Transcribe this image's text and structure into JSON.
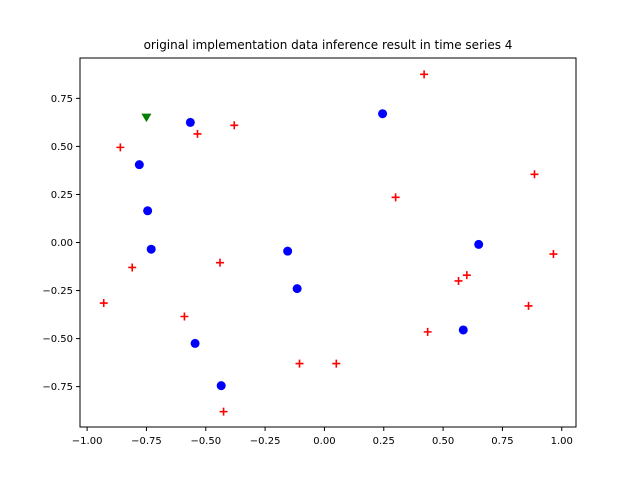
{
  "chart_data": {
    "type": "scatter",
    "title": "original implementation data inference result in time series 4",
    "xlabel": "",
    "ylabel": "",
    "xlim": [
      -1.03,
      1.06
    ],
    "ylim": [
      -0.96,
      0.96
    ],
    "x_ticks": [
      -1.0,
      -0.75,
      -0.5,
      -0.25,
      0.0,
      0.25,
      0.5,
      0.75,
      1.0
    ],
    "x_tick_labels": [
      "−1.00",
      "−0.75",
      "−0.50",
      "−0.25",
      "0.00",
      "0.25",
      "0.50",
      "0.75",
      "1.00"
    ],
    "y_ticks": [
      0.75,
      0.5,
      0.25,
      0.0,
      -0.25,
      -0.5,
      -0.75
    ],
    "y_tick_labels": [
      "0.75",
      "0.50",
      "0.25",
      "0.00",
      "−0.25",
      "−0.50",
      "−0.75"
    ],
    "grid": false,
    "series": [
      {
        "marker": "circle",
        "color": "#0000ff",
        "points": [
          [
            -0.565,
            0.625
          ],
          [
            0.245,
            0.67
          ],
          [
            -0.78,
            0.405
          ],
          [
            -0.745,
            0.165
          ],
          [
            -0.73,
            -0.035
          ],
          [
            -0.155,
            -0.045
          ],
          [
            -0.115,
            -0.24
          ],
          [
            0.65,
            -0.01
          ],
          [
            0.585,
            -0.455
          ],
          [
            -0.545,
            -0.525
          ],
          [
            -0.435,
            -0.745
          ]
        ]
      },
      {
        "marker": "plus",
        "color": "#ff0000",
        "points": [
          [
            0.42,
            0.875
          ],
          [
            -0.86,
            0.495
          ],
          [
            -0.535,
            0.565
          ],
          [
            -0.38,
            0.61
          ],
          [
            0.3,
            0.235
          ],
          [
            0.885,
            0.355
          ],
          [
            -0.81,
            -0.13
          ],
          [
            -0.44,
            -0.105
          ],
          [
            0.965,
            -0.06
          ],
          [
            0.6,
            -0.17
          ],
          [
            0.565,
            -0.2
          ],
          [
            -0.93,
            -0.315
          ],
          [
            0.86,
            -0.33
          ],
          [
            -0.59,
            -0.385
          ],
          [
            0.435,
            -0.465
          ],
          [
            -0.105,
            -0.63
          ],
          [
            0.05,
            -0.63
          ],
          [
            -0.425,
            -0.88
          ]
        ]
      },
      {
        "marker": "triangle-down",
        "color": "#008000",
        "points": [
          [
            -0.75,
            0.65
          ]
        ]
      }
    ]
  }
}
